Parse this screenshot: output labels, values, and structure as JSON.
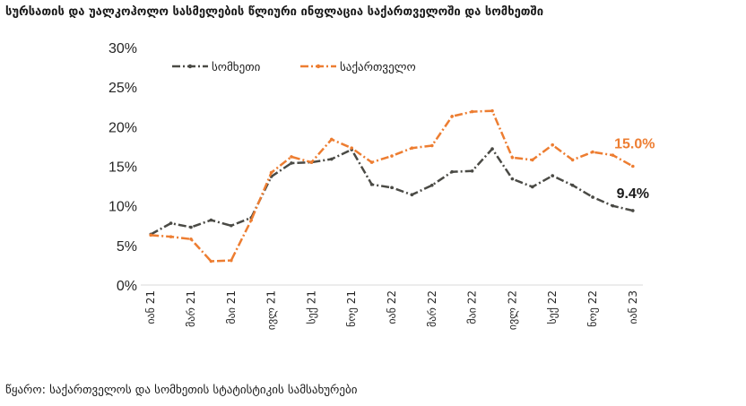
{
  "title": "სურსათის და უალკოჰოლო სასმელების წლიური ინფლაცია საქართველოში და სომხეთში",
  "source": "წყარო: საქართველოს და სომხეთის სტატისტიკის სამსახურები",
  "chart_data": {
    "type": "line",
    "ylim": [
      0,
      30
    ],
    "yticks": [
      "0%",
      "5%",
      "10%",
      "15%",
      "20%",
      "25%",
      "30%"
    ],
    "xtick_labels": [
      "იან 21",
      "მარ 21",
      "მაი 21",
      "ივლ 21",
      "სექ 21",
      "ნოე 21",
      "იან 22",
      "მარ 22",
      "მაი 22",
      "ივლ 22",
      "სექ 22",
      "ნოე 22",
      "იან 23"
    ],
    "x": [
      "იან 21",
      "თებ 21",
      "მარ 21",
      "აპრ 21",
      "მაი 21",
      "ივნ 21",
      "ივლ 21",
      "აგვ 21",
      "სექ 21",
      "ოქტ 21",
      "ნოე 21",
      "დეკ 21",
      "იან 22",
      "თებ 22",
      "მარ 22",
      "აპრ 22",
      "მაი 22",
      "ივნ 22",
      "ივლ 22",
      "აგვ 22",
      "სექ 22",
      "ოქტ 22",
      "ნოე 22",
      "დეკ 22",
      "იან 23"
    ],
    "legend_position": "top-left",
    "series": [
      {
        "name": "სომხეთი",
        "color": "#4a4a45",
        "values": [
          6.4,
          7.8,
          7.3,
          8.2,
          7.5,
          8.5,
          13.7,
          15.4,
          15.5,
          15.9,
          17.1,
          12.7,
          12.3,
          11.4,
          12.6,
          14.3,
          14.4,
          17.2,
          13.4,
          12.4,
          13.8,
          12.6,
          11.1,
          10.0,
          9.4
        ],
        "end_label": "9.4%"
      },
      {
        "name": "საქართველო",
        "color": "#ed7d31",
        "values": [
          6.3,
          6.1,
          5.8,
          3.0,
          3.1,
          8.2,
          14.2,
          16.2,
          15.5,
          18.4,
          17.3,
          15.5,
          16.3,
          17.3,
          17.6,
          21.3,
          21.9,
          22.0,
          16.1,
          15.8,
          17.7,
          15.8,
          16.8,
          16.4,
          15.0
        ],
        "end_label": "15.0%"
      }
    ]
  }
}
